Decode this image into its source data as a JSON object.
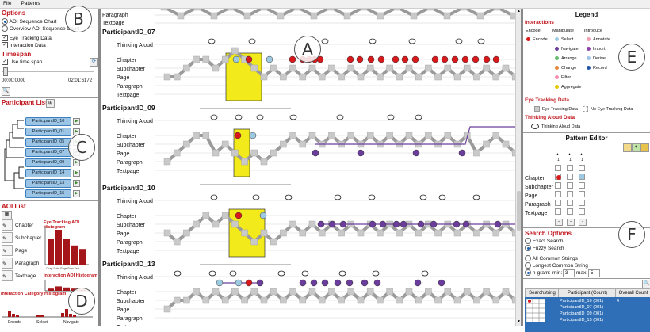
{
  "menu": {
    "file": "File",
    "patterns": "Patterns"
  },
  "options": {
    "title": "Options",
    "radio1": "AOI Sequence Chart",
    "radio2": "Overview AOI Sequence Chart",
    "check1": "Eye Tracking Data",
    "check2": "Interaction Data"
  },
  "timespan": {
    "title": "Timespan",
    "use_label": "Use time span",
    "start": "00:00:0000",
    "end": "02:01:6172"
  },
  "participants": {
    "title": "Participant List",
    "items": [
      "ParticipantID_10",
      "ParticipantID_01",
      "ParticipantID_05",
      "ParticipantID_07",
      "ParticipantID_09",
      "ParticipantID_14",
      "ParticipantID_13",
      "ParticipantID_15"
    ]
  },
  "aoi": {
    "title": "AOI List",
    "items": [
      "Chapter",
      "Subchapter",
      "Page",
      "Paragraph",
      "Textpage"
    ],
    "hist1_title": "Eye Tracking AOI Histogram",
    "hist2_title": "Interaction AOI Histogram",
    "hist1_values": [
      0.75,
      1.0,
      0.75,
      0.55,
      0.45
    ],
    "hist2_values": [
      0.2,
      0.4,
      0.3,
      0.2,
      0.1
    ],
    "hist_labels": "Chap Subc Page Para Text",
    "cat_title": "Interaction Category Histogram",
    "cat_labels": [
      "Encode",
      "Select",
      "Navigate"
    ]
  },
  "chart": {
    "lanes": [
      "Thinking Aloud",
      "Chapter",
      "Subchapter",
      "Page",
      "Paragraph",
      "Textpage"
    ],
    "top_partial_labels": [
      "Paragraph",
      "Textpage"
    ],
    "participants": [
      "ParticipantID_07",
      "ParticipantID_09",
      "ParticipantID_10",
      "ParticipantID_13"
    ],
    "callouts": [
      "A",
      "B",
      "C",
      "D",
      "E",
      "F"
    ]
  },
  "legend": {
    "title": "Legend",
    "interactions": "Interactions",
    "cols": [
      "Encode",
      "Manipulate",
      "Introduce"
    ],
    "items": [
      {
        "label": "Encode",
        "color": "#d7191c"
      },
      {
        "label": "Select",
        "color": "#9ecae1"
      },
      {
        "label": "Navigate",
        "color": "#6a3d9a"
      },
      {
        "label": "Arrange",
        "color": "#66bb6a"
      },
      {
        "label": "Change",
        "color": "#e6843a"
      },
      {
        "label": "Filter",
        "color": "#f48fb1"
      },
      {
        "label": "Aggregate",
        "color": "#e6c800"
      },
      {
        "label": "Annotate",
        "color": "#f0a0b0"
      },
      {
        "label": "Import",
        "color": "#8e44ad"
      },
      {
        "label": "Derive",
        "color": "#a0c4e8"
      },
      {
        "label": "Record",
        "color": "#2457a8"
      }
    ],
    "eye_title": "Eye Tracking Data",
    "eye_item": "Eye Tracking Data",
    "no_eye_item": "No Eye Tracking Data",
    "think_title": "Thinking Aloud Data",
    "think_item": "Thinking Aloud Data"
  },
  "pattern_editor": {
    "title": "Pattern Editor",
    "rows": [
      "Chapter",
      "Subchapter",
      "Page",
      "Paragraph",
      "Textpage"
    ],
    "col_numbers": [
      "1",
      "1",
      "1"
    ]
  },
  "search": {
    "title": "Search Options",
    "exact": "Exact Search",
    "fuzzy": "Fuzzy Search",
    "all_common": "All Common Strings",
    "longest": "Longest Common String",
    "ngram": "n-gram:",
    "min_label": "min:",
    "min_val": "3",
    "max_label": "max:",
    "max_val": "5"
  },
  "results": {
    "headers": [
      "Searchstring",
      "Participant (Count)",
      "Overall Count"
    ],
    "participants": [
      "ParticipantID_10 (001)",
      "ParticipantID_07 (001)",
      "ParticipantID_09 (001)",
      "ParticipantID_15 (001)"
    ],
    "overall": "4"
  },
  "colors": {
    "accent": "#c0141b",
    "highlight": "#f2ea1a",
    "line": "#9a9a9a",
    "block": "#c9c9c9"
  }
}
